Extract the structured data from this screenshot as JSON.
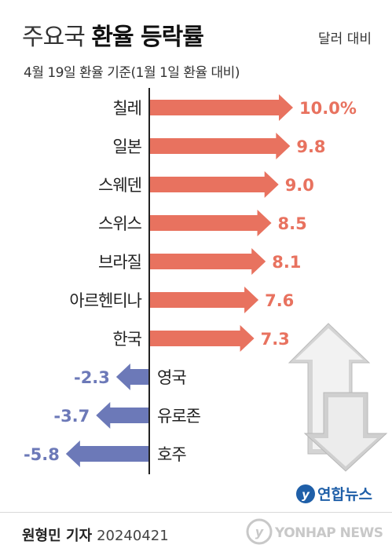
{
  "header": {
    "title_light": "주요국",
    "title_bold": "환율 등락률",
    "unit_note": "달러 대비",
    "subtitle": "4월 19일 환율 기준(1월 1일 환율 대비)"
  },
  "chart_data": {
    "type": "bar",
    "orientation": "horizontal",
    "categories": [
      "칠레",
      "일본",
      "스웨덴",
      "스위스",
      "브라질",
      "아르헨티나",
      "한국",
      "영국",
      "유로존",
      "호주"
    ],
    "values": [
      10.0,
      9.8,
      9.0,
      8.5,
      8.1,
      7.6,
      7.3,
      -2.3,
      -3.7,
      -5.8
    ],
    "value_labels": [
      "10.0%",
      "9.8",
      "9.0",
      "8.5",
      "8.1",
      "7.6",
      "7.3",
      "-2.3",
      "-3.7",
      "-5.8"
    ],
    "unit": "%",
    "positive_color": "#e8725f",
    "negative_color": "#6c79b8"
  },
  "logo": {
    "text": "연합뉴스",
    "brand_color": "#1f5fa8"
  },
  "footer": {
    "author": "원형민 기자",
    "date": "20240421",
    "watermark": "YONHAP NEWS"
  }
}
